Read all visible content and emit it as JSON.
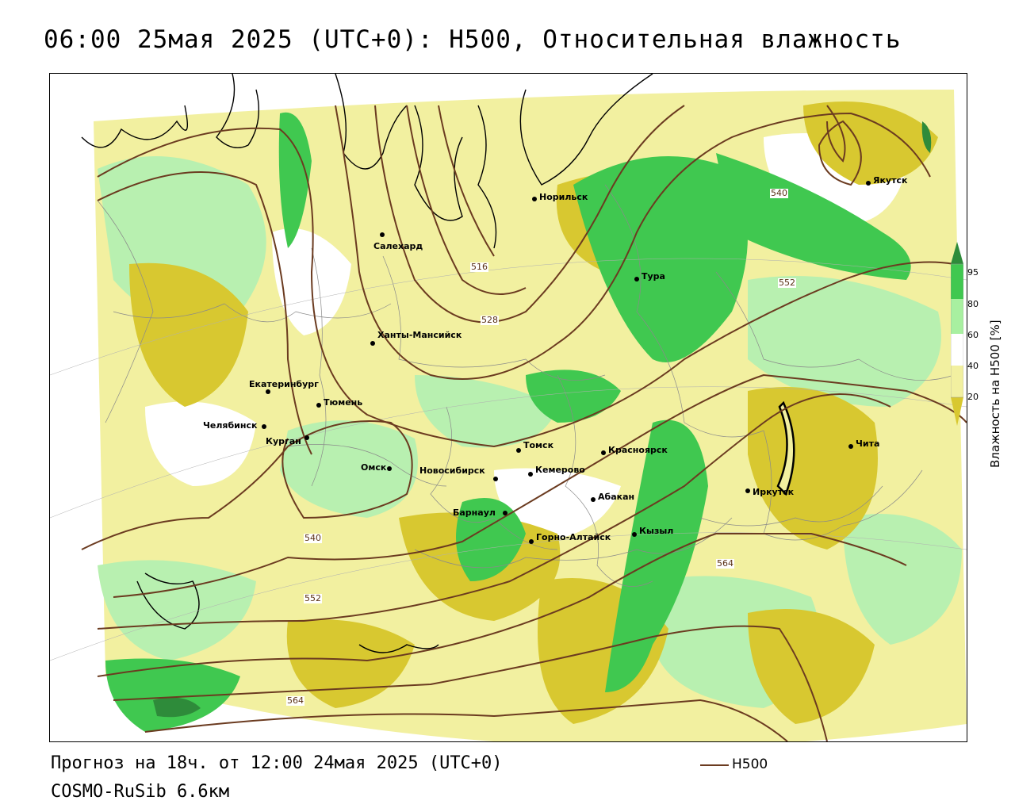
{
  "title": "06:00 25мая 2025 (UTC+0): H500, Относительная влажность",
  "footer": {
    "forecast": "Прогноз на 18ч. от 12:00 24мая 2025 (UTC+0)",
    "model": "COSMO-RuSib 6.6км"
  },
  "legend": {
    "h500_label": "H500",
    "line_color": "#6b3b20"
  },
  "colorbar": {
    "title": "Влажность на H500 [%]",
    "ticks": [
      "95",
      "80",
      "60",
      "40",
      "20"
    ],
    "colors": [
      "#2e8b3a",
      "#40c850",
      "#a8f0a0",
      "#ffffff",
      "#f2f0a0",
      "#d8c830"
    ]
  },
  "contour_labels": [
    "516",
    "528",
    "540",
    "552",
    "540",
    "552",
    "564",
    "564"
  ],
  "cities": [
    "Норильск",
    "Якутск",
    "Салехард",
    "Тура",
    "Ханты-Мансийск",
    "Екатеринбург",
    "Тюмень",
    "Челябинск",
    "Курган",
    "Омск",
    "Новосибирск",
    "Томск",
    "Кемерово",
    "Красноярск",
    "Абакан",
    "Барнаул",
    "Горно-Алтайск",
    "Кызыл",
    "Иркутск",
    "Чита"
  ],
  "colors": {
    "contour": "#6b3b20",
    "humid": "#40c850",
    "very_humid": "#2e8b3a",
    "dry": "#d8c830",
    "light_dry": "#f2f0a0",
    "light_humid": "#b8f0b0"
  }
}
